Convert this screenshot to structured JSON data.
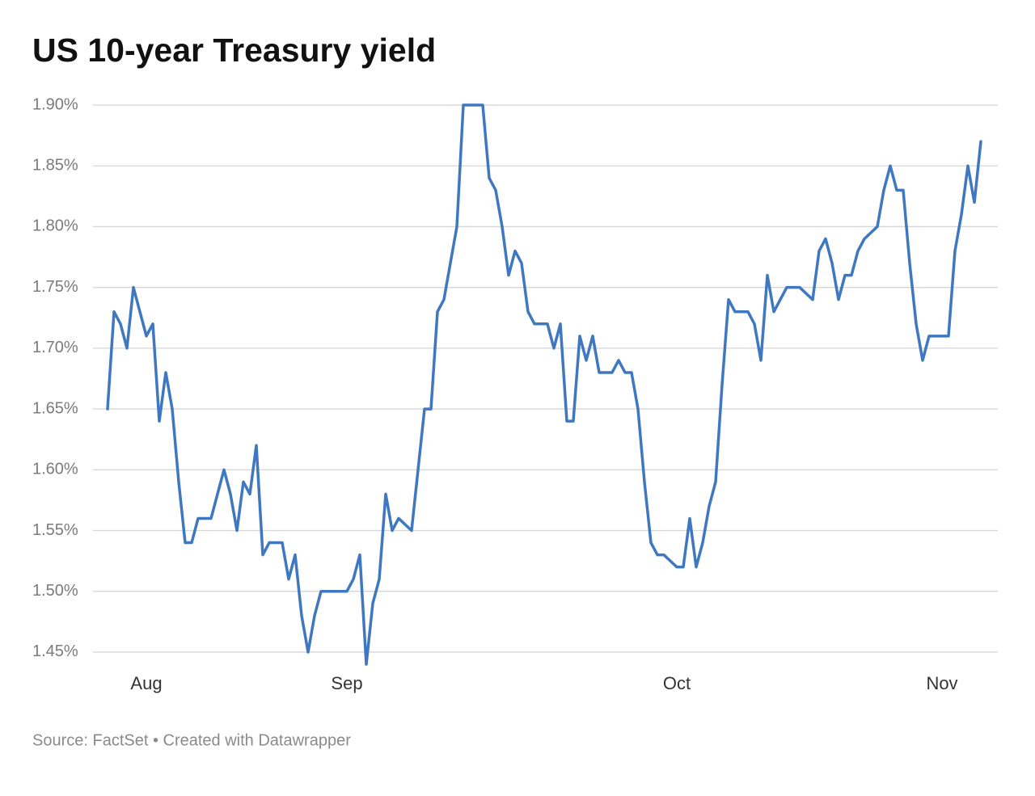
{
  "chart_data": {
    "type": "line",
    "title": "US 10-year Treasury yield",
    "source": "Source: FactSet • Created with Datawrapper",
    "color": "#3f78c0",
    "grid": true,
    "categories": [
      null,
      null,
      null,
      null,
      null,
      null,
      "Aug",
      null,
      null,
      null,
      null,
      null,
      null,
      null,
      null,
      null,
      null,
      null,
      null,
      null,
      null,
      null,
      null,
      null,
      null,
      null,
      null,
      null,
      null,
      null,
      null,
      null,
      null,
      null,
      null,
      null,
      null,
      "Sep",
      null,
      null,
      null,
      null,
      null,
      null,
      null,
      null,
      null,
      null,
      null,
      null,
      null,
      null,
      null,
      null,
      null,
      null,
      null,
      null,
      null,
      null,
      null,
      null,
      null,
      null,
      null,
      null,
      null,
      null,
      null,
      null,
      null,
      null,
      null,
      null,
      null,
      null,
      null,
      null,
      null,
      null,
      null,
      null,
      null,
      null,
      null,
      null,
      null,
      null,
      "Oct",
      null,
      null,
      null,
      null,
      null,
      null,
      null,
      null,
      null,
      null,
      null,
      null,
      null,
      null,
      null,
      null,
      null,
      null,
      null,
      null,
      null,
      null,
      null,
      null,
      null,
      null,
      null,
      null,
      null,
      null,
      null,
      null,
      null,
      null,
      null,
      null,
      null,
      null,
      null,
      null,
      "Nov",
      null,
      null,
      null,
      null,
      null,
      null
    ],
    "values": [
      1.65,
      1.73,
      1.72,
      1.7,
      1.75,
      1.73,
      1.71,
      1.72,
      1.64,
      1.68,
      1.65,
      1.59,
      1.54,
      1.54,
      1.56,
      1.56,
      1.56,
      1.58,
      1.6,
      1.58,
      1.55,
      1.59,
      1.58,
      1.62,
      1.53,
      1.54,
      1.54,
      1.54,
      1.51,
      1.53,
      1.48,
      1.45,
      1.48,
      1.5,
      1.5,
      1.5,
      1.5,
      1.5,
      1.51,
      1.53,
      1.44,
      1.49,
      1.51,
      1.58,
      1.55,
      1.56,
      1.555,
      1.55,
      1.6,
      1.65,
      1.65,
      1.73,
      1.74,
      1.77,
      1.8,
      1.9,
      1.9,
      1.9,
      1.9,
      1.84,
      1.83,
      1.8,
      1.76,
      1.78,
      1.77,
      1.73,
      1.72,
      1.72,
      1.72,
      1.7,
      1.72,
      1.64,
      1.64,
      1.71,
      1.69,
      1.71,
      1.68,
      1.68,
      1.68,
      1.69,
      1.68,
      1.68,
      1.65,
      1.59,
      1.54,
      1.53,
      1.53,
      1.525,
      1.52,
      1.52,
      1.56,
      1.52,
      1.54,
      1.57,
      1.59,
      1.67,
      1.74,
      1.73,
      1.73,
      1.73,
      1.72,
      1.69,
      1.76,
      1.73,
      1.74,
      1.75,
      1.75,
      1.75,
      1.745,
      1.74,
      1.78,
      1.79,
      1.77,
      1.74,
      1.76,
      1.76,
      1.78,
      1.79,
      1.795,
      1.8,
      1.83,
      1.85,
      1.83,
      1.83,
      1.77,
      1.72,
      1.69,
      1.71,
      1.71,
      1.71,
      1.71,
      1.78,
      1.81,
      1.85,
      1.82,
      1.87
    ],
    "ylim": [
      1.43,
      1.91
    ],
    "yticks": [
      {
        "value": 1.45,
        "label": "1.45%"
      },
      {
        "value": 1.5,
        "label": "1.50%"
      },
      {
        "value": 1.55,
        "label": "1.55%"
      },
      {
        "value": 1.6,
        "label": "1.60%"
      },
      {
        "value": 1.65,
        "label": "1.65%"
      },
      {
        "value": 1.7,
        "label": "1.70%"
      },
      {
        "value": 1.75,
        "label": "1.75%"
      },
      {
        "value": 1.8,
        "label": "1.80%"
      },
      {
        "value": 1.85,
        "label": "1.85%"
      },
      {
        "value": 1.9,
        "label": "1.90%"
      }
    ]
  }
}
